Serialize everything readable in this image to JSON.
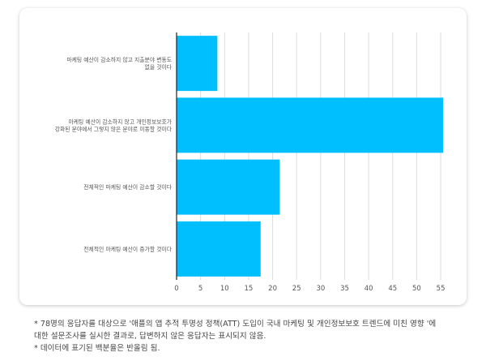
{
  "chart_data": {
    "type": "bar",
    "orientation": "horizontal",
    "categories": [
      [
        "마케팅 예산이 감소하지 않고 지출분야 변동도",
        "없을 것이다"
      ],
      [
        "마케팅 예산이 감소하지 않고 개인정보보호가",
        "강화된 분야에서 그렇지 않은 분야로 이동할 것이다"
      ],
      [
        "전체적인 마케팅 예산이 감소할 것이다"
      ],
      [
        "전체적인 마케팅 예산이 증가할 것이다"
      ]
    ],
    "values": [
      8.5,
      55.5,
      21.5,
      17.5
    ],
    "xticks": [
      0,
      5,
      10,
      15,
      20,
      25,
      30,
      35,
      40,
      45,
      50,
      55
    ],
    "xlim": [
      0,
      56
    ],
    "grid": true,
    "bar_color": "#00bfff"
  },
  "notes": [
    "* 78명의 응답자를 대상으로 '애플의 앱 추적 투명성 정책(ATT) 도입이 국내 마케팅 및 개인정보보호 트렌드에 미친 영향 '에",
    "대한 설문조사를 실시한 결과로, 답변하지 않은 응답자는 표시되지 않음.",
    "* 데이터에 표기된 백분율은 반올림 됨."
  ]
}
